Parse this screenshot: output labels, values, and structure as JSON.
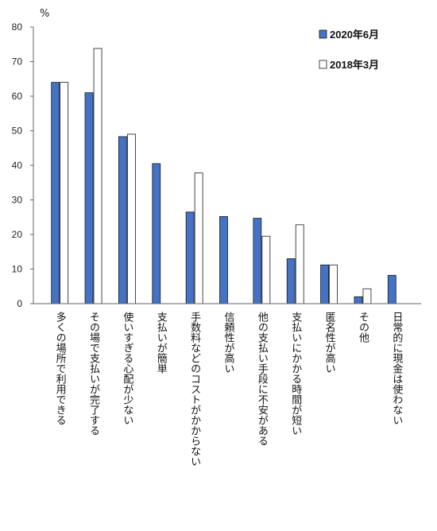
{
  "chart_data": {
    "type": "bar",
    "unit_label": "%",
    "ylim": [
      0,
      80
    ],
    "yticks": [
      "0",
      "10",
      "20",
      "30",
      "40",
      "50",
      "60",
      "70",
      "80"
    ],
    "grid": false,
    "legend_position": "top-right",
    "categories": [
      "多くの場所で利用できる",
      "その場で支払いが完了する",
      "使いすぎる心配が少ない",
      "支払いが簡単",
      "手数料などのコストがかからない",
      "信頼性が高い",
      "他の支払い手段に不安がある",
      "支払いにかかる時間が短い",
      "匿名性が高い",
      "その他",
      "日常的に現金は使わない"
    ],
    "series": [
      {
        "name": "2020年6月",
        "color": "#4472C4",
        "values": [
          64,
          61,
          48.3,
          40.5,
          26.5,
          25.2,
          24.7,
          13.0,
          11.2,
          2.0,
          8.2
        ]
      },
      {
        "name": "2018年3月",
        "color": "#FFFFFF",
        "values": [
          64,
          73.8,
          49,
          null,
          37.8,
          null,
          19.5,
          22.8,
          11.2,
          4.3,
          null
        ]
      }
    ]
  }
}
